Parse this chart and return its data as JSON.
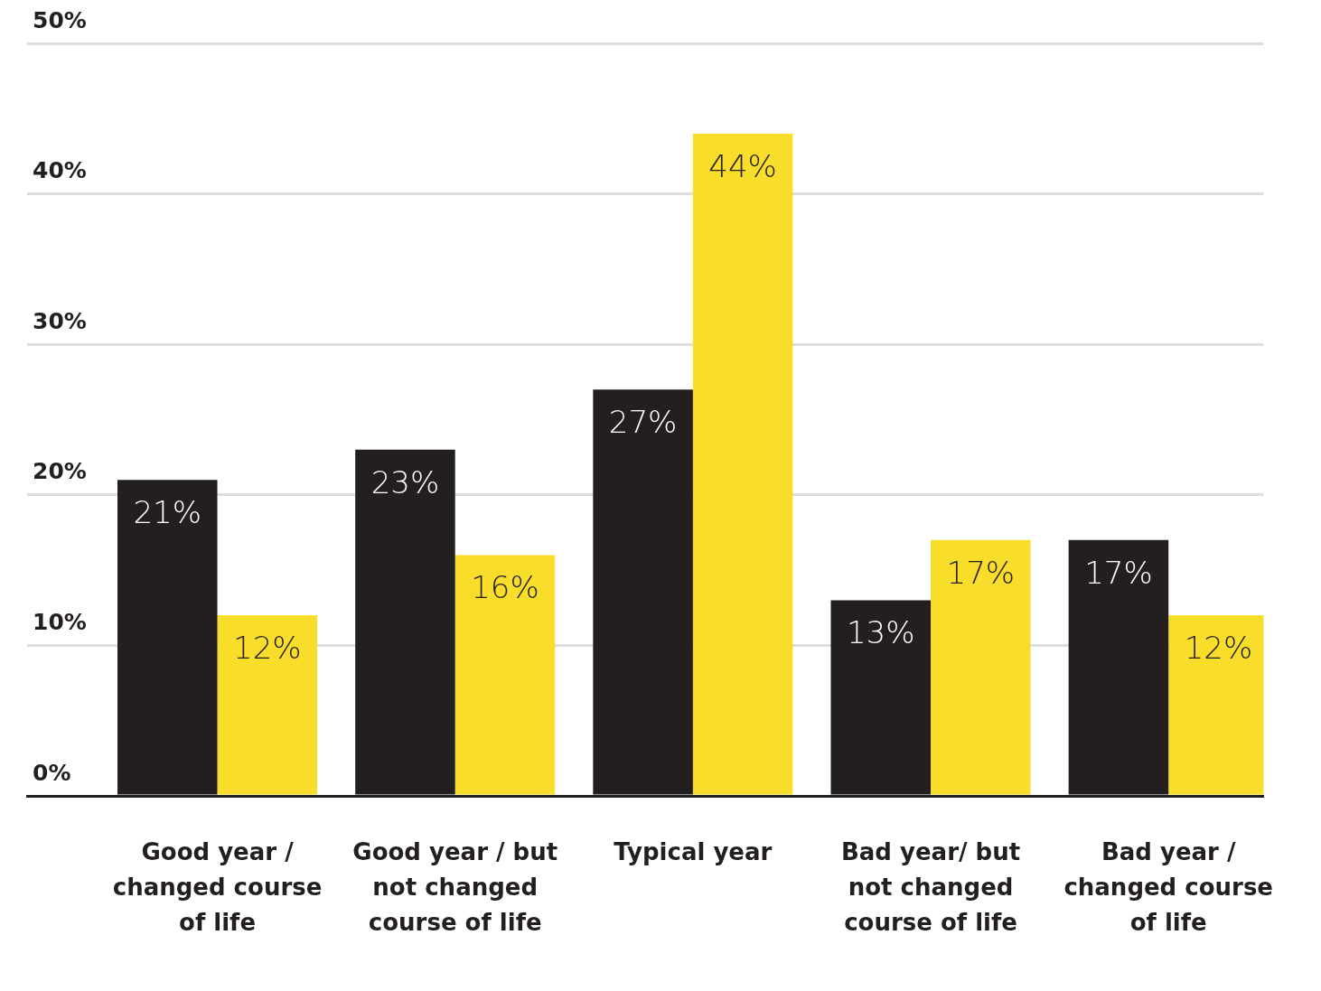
{
  "chart_data": {
    "type": "bar",
    "categories": [
      "Good year / changed course of life",
      "Good year / but not changed course of life",
      "Typical year",
      "Bad year/ but not changed course of life",
      "Bad year / changed course of life"
    ],
    "series": [
      {
        "color": "#231f20",
        "values": [
          21,
          23,
          27,
          13,
          17
        ],
        "value_labels": [
          "21%",
          "23%",
          "27%",
          "13%",
          "17%"
        ]
      },
      {
        "color": "#f9dd2b",
        "values": [
          12,
          16,
          44,
          17,
          12
        ],
        "value_labels": [
          "12%",
          "16%",
          "44%",
          "17%",
          "12%"
        ]
      }
    ],
    "ylim": [
      0,
      50
    ],
    "yticks": [
      {
        "value": 0,
        "label": "0%"
      },
      {
        "value": 10,
        "label": "10%"
      },
      {
        "value": 20,
        "label": "20%"
      },
      {
        "value": 30,
        "label": "30%"
      },
      {
        "value": 40,
        "label": "40%"
      },
      {
        "value": 50,
        "label": "50%"
      }
    ],
    "grid": "y",
    "legend": false
  }
}
